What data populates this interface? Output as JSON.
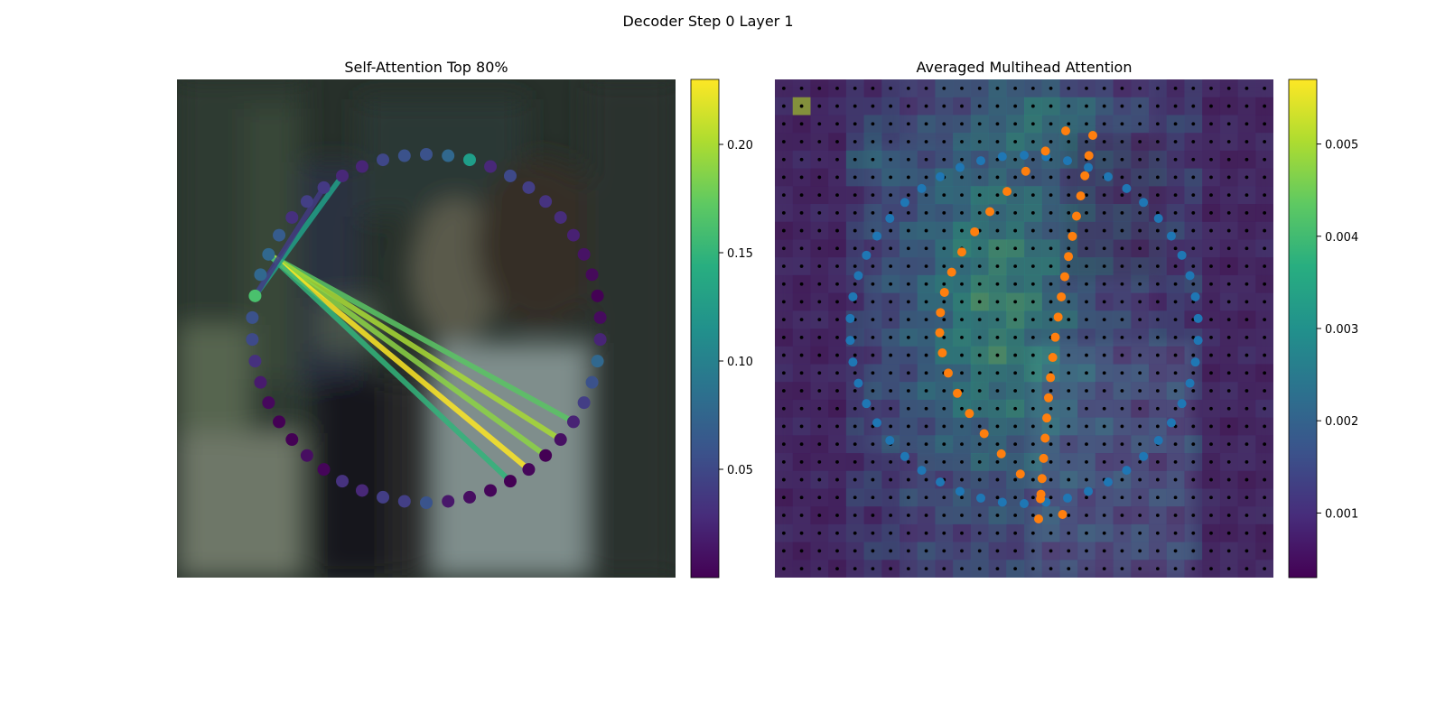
{
  "figure": {
    "title": "Decoder Step 0 Layer 1"
  },
  "chart_data": [
    {
      "type": "scatter",
      "title": "Self-Attention Top 80%",
      "xlabel": "",
      "ylabel": "",
      "axes_visible": false,
      "background": "blurred video frame",
      "colorbar": {
        "cmap": "viridis",
        "range": [
          0.0,
          0.23
        ],
        "ticks": [
          0.05,
          0.1,
          0.15,
          0.2
        ],
        "tick_labels": [
          "0.05",
          "0.10",
          "0.15",
          "0.20"
        ]
      },
      "contour": {
        "num_points": 50,
        "colors": [
          "#3b528b",
          "#31688e",
          "#1f9e89",
          "#482878",
          "#3e4989",
          "#433e85",
          "#46337f",
          "#472d7b",
          "#482173",
          "#471365",
          "#450a5a",
          "#440154",
          "#460b5e",
          "#482576",
          "#31688e",
          "#3b528b",
          "#433e85",
          "#482374",
          "#471063",
          "#440154",
          "#46075a",
          "#440154",
          "#450559",
          "#470e61",
          "#48186a",
          "#3a548c",
          "#433f85",
          "#433e85",
          "#482878",
          "#46327e",
          "#450559",
          "#470e61",
          "#440154",
          "#440154",
          "#46085c",
          "#481b6d",
          "#46317e",
          "#3e4a89",
          "#3b528b",
          "#4ac16d",
          "#31688e",
          "#31688e",
          "#365c8d",
          "#46307e",
          "#433f85",
          "#443983",
          "#482878",
          "#482576",
          "#3f4788",
          "#3b528b"
        ]
      },
      "attention_lines": [
        {
          "from": 41,
          "to": 17,
          "value": 0.17
        },
        {
          "from": 41,
          "to": 18,
          "value": 0.2
        },
        {
          "from": 41,
          "to": 19,
          "value": 0.19
        },
        {
          "from": 41,
          "to": 20,
          "value": 0.23
        },
        {
          "from": 41,
          "to": 21,
          "value": 0.15
        },
        {
          "from": 39,
          "to": 46,
          "value": 0.13
        },
        {
          "from": 39,
          "to": 45,
          "value": 0.04
        }
      ]
    },
    {
      "type": "heatmap",
      "title": "Averaged Multihead Attention",
      "xlabel": "",
      "ylabel": "",
      "axes_visible": false,
      "grid_size": [
        28,
        28
      ],
      "colorbar": {
        "cmap": "viridis",
        "range": [
          0.0003,
          0.0057
        ],
        "ticks": [
          0.001,
          0.002,
          0.003,
          0.004,
          0.005
        ],
        "tick_labels": [
          "0.001",
          "0.002",
          "0.003",
          "0.004",
          "0.005"
        ]
      },
      "series": [
        {
          "color": "#1f77b4",
          "num_points": 50
        },
        {
          "color": "#ff7f0e",
          "num_points": 40
        }
      ]
    }
  ]
}
